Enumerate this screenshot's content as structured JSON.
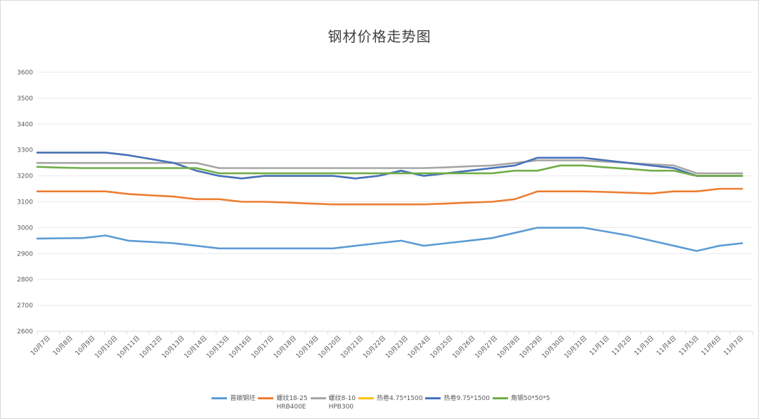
{
  "chart_data": {
    "type": "line",
    "title": "钢材价格走势图",
    "xlabel": "",
    "ylabel": "",
    "ylim": [
      2600,
      3600
    ],
    "yticks": [
      2600,
      2700,
      2800,
      2900,
      3000,
      3100,
      3200,
      3300,
      3400,
      3500,
      3600
    ],
    "grid": true,
    "legend_position": "bottom",
    "categories": [
      "10月7日",
      "10月8日",
      "10月9日",
      "10月10日",
      "10月11日",
      "10月12日",
      "10月13日",
      "10月14日",
      "10月15日",
      "10月16日",
      "10月17日",
      "10月18日",
      "10月19日",
      "10月20日",
      "10月21日",
      "10月22日",
      "10月23日",
      "10月24日",
      "10月25日",
      "10月26日",
      "10月27日",
      "10月28日",
      "10月29日",
      "10月30日",
      "10月31日",
      "11月1日",
      "11月2日",
      "11月3日",
      "11月4日",
      "11月5日",
      "11月6日",
      "11月7日"
    ],
    "series": [
      {
        "name": "普碳钢坯",
        "color": "#5b9bd5",
        "values": [
          2958,
          2959,
          2960,
          2970,
          2950,
          2945,
          2940,
          2930,
          2920,
          2920,
          2920,
          2920,
          2920,
          2920,
          2930,
          2940,
          2950,
          2930,
          2940,
          2950,
          2960,
          2980,
          3000,
          3000,
          3000,
          2985,
          2970,
          2950,
          2930,
          2910,
          2930,
          2940
        ]
      },
      {
        "name": "螺纹18-25 HRB400E",
        "color": "#ed7d31",
        "values": [
          3140,
          3140,
          3140,
          3140,
          3130,
          3125,
          3120,
          3110,
          3110,
          3100,
          3100,
          3097,
          3093,
          3090,
          3090,
          3090,
          3090,
          3090,
          3093,
          3097,
          3100,
          3110,
          3140,
          3140,
          3140,
          3138,
          3135,
          3132,
          3140,
          3140,
          3150,
          3150
        ]
      },
      {
        "name": "螺纹8-10 HPB300",
        "color": "#a5a5a5",
        "values": [
          3250,
          3250,
          3250,
          3250,
          3250,
          3250,
          3250,
          3250,
          3230,
          3230,
          3230,
          3230,
          3230,
          3230,
          3230,
          3230,
          3230,
          3230,
          3233,
          3237,
          3240,
          3250,
          3260,
          3260,
          3260,
          3255,
          3250,
          3245,
          3240,
          3210,
          3210,
          3210
        ]
      },
      {
        "name": "热卷4.75*1500",
        "color": "#ffc000",
        "values": [
          3290,
          3290,
          3290,
          3290,
          3280,
          3265,
          3250,
          3220,
          3200,
          3190,
          3200,
          3200,
          3200,
          3200,
          3190,
          3200,
          3220,
          3200,
          3210,
          3220,
          3230,
          3240,
          3270,
          3270,
          3270,
          3260,
          3250,
          3240,
          3230,
          3200,
          3200,
          3200
        ]
      },
      {
        "name": "热卷9.75*1500",
        "color": "#4472c4",
        "values": [
          3290,
          3290,
          3290,
          3290,
          3280,
          3265,
          3250,
          3220,
          3200,
          3190,
          3200,
          3200,
          3200,
          3200,
          3190,
          3200,
          3220,
          3200,
          3210,
          3220,
          3230,
          3240,
          3270,
          3270,
          3270,
          3260,
          3250,
          3240,
          3230,
          3200,
          3200,
          3200
        ]
      },
      {
        "name": "角钢50*50*5",
        "color": "#70ad47",
        "values": [
          3235,
          3232,
          3230,
          3230,
          3230,
          3230,
          3230,
          3230,
          3210,
          3210,
          3210,
          3210,
          3210,
          3210,
          3210,
          3210,
          3210,
          3210,
          3210,
          3210,
          3210,
          3220,
          3220,
          3240,
          3240,
          3233,
          3227,
          3220,
          3220,
          3200,
          3200,
          3200
        ]
      }
    ]
  },
  "legend": [
    {
      "line1": "普碳钢坯",
      "line2": ""
    },
    {
      "line1": "螺纹18-25",
      "line2": "HRB400E"
    },
    {
      "line1": "螺纹8-10",
      "line2": "HPB300"
    },
    {
      "line1": "热卷4.75*1500",
      "line2": ""
    },
    {
      "line1": "热卷9.75*1500",
      "line2": ""
    },
    {
      "line1": "角钢50*50*5",
      "line2": ""
    }
  ]
}
